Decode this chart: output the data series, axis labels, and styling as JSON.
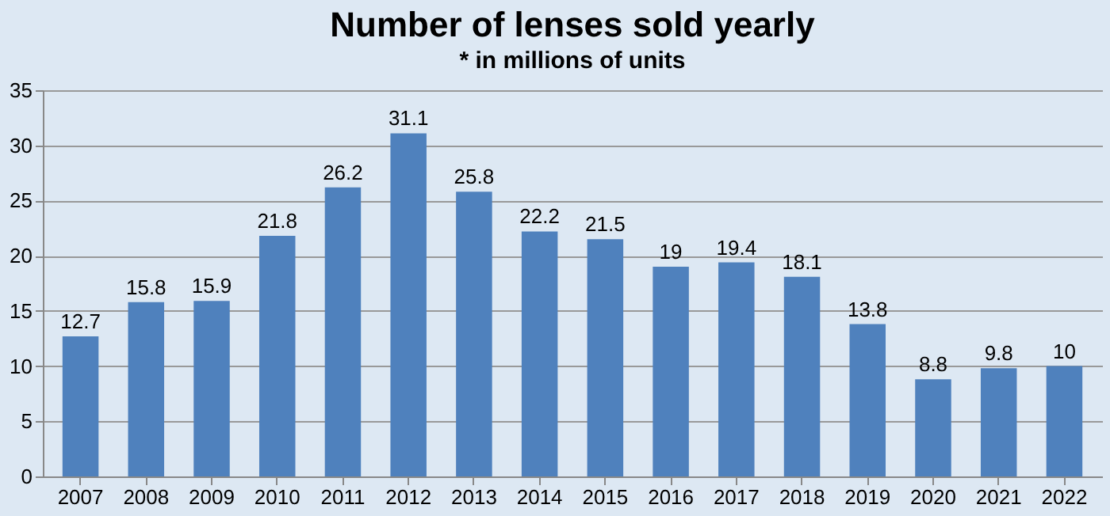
{
  "chart_data": {
    "type": "bar",
    "title": "Number of lenses sold yearly",
    "subtitle": "* in millions of units",
    "categories": [
      "2007",
      "2008",
      "2009",
      "2010",
      "2011",
      "2012",
      "2013",
      "2014",
      "2015",
      "2016",
      "2017",
      "2018",
      "2019",
      "2020",
      "2021",
      "2022"
    ],
    "values": [
      12.7,
      15.8,
      15.9,
      21.8,
      26.2,
      31.1,
      25.8,
      22.2,
      21.5,
      19,
      19.4,
      18.1,
      13.8,
      8.8,
      9.8,
      10
    ],
    "color": "#4f81bd",
    "ylim": [
      0,
      35
    ],
    "yticks": [
      0,
      5,
      10,
      15,
      20,
      25,
      30,
      35
    ],
    "grid": "y",
    "data_labels": true
  }
}
